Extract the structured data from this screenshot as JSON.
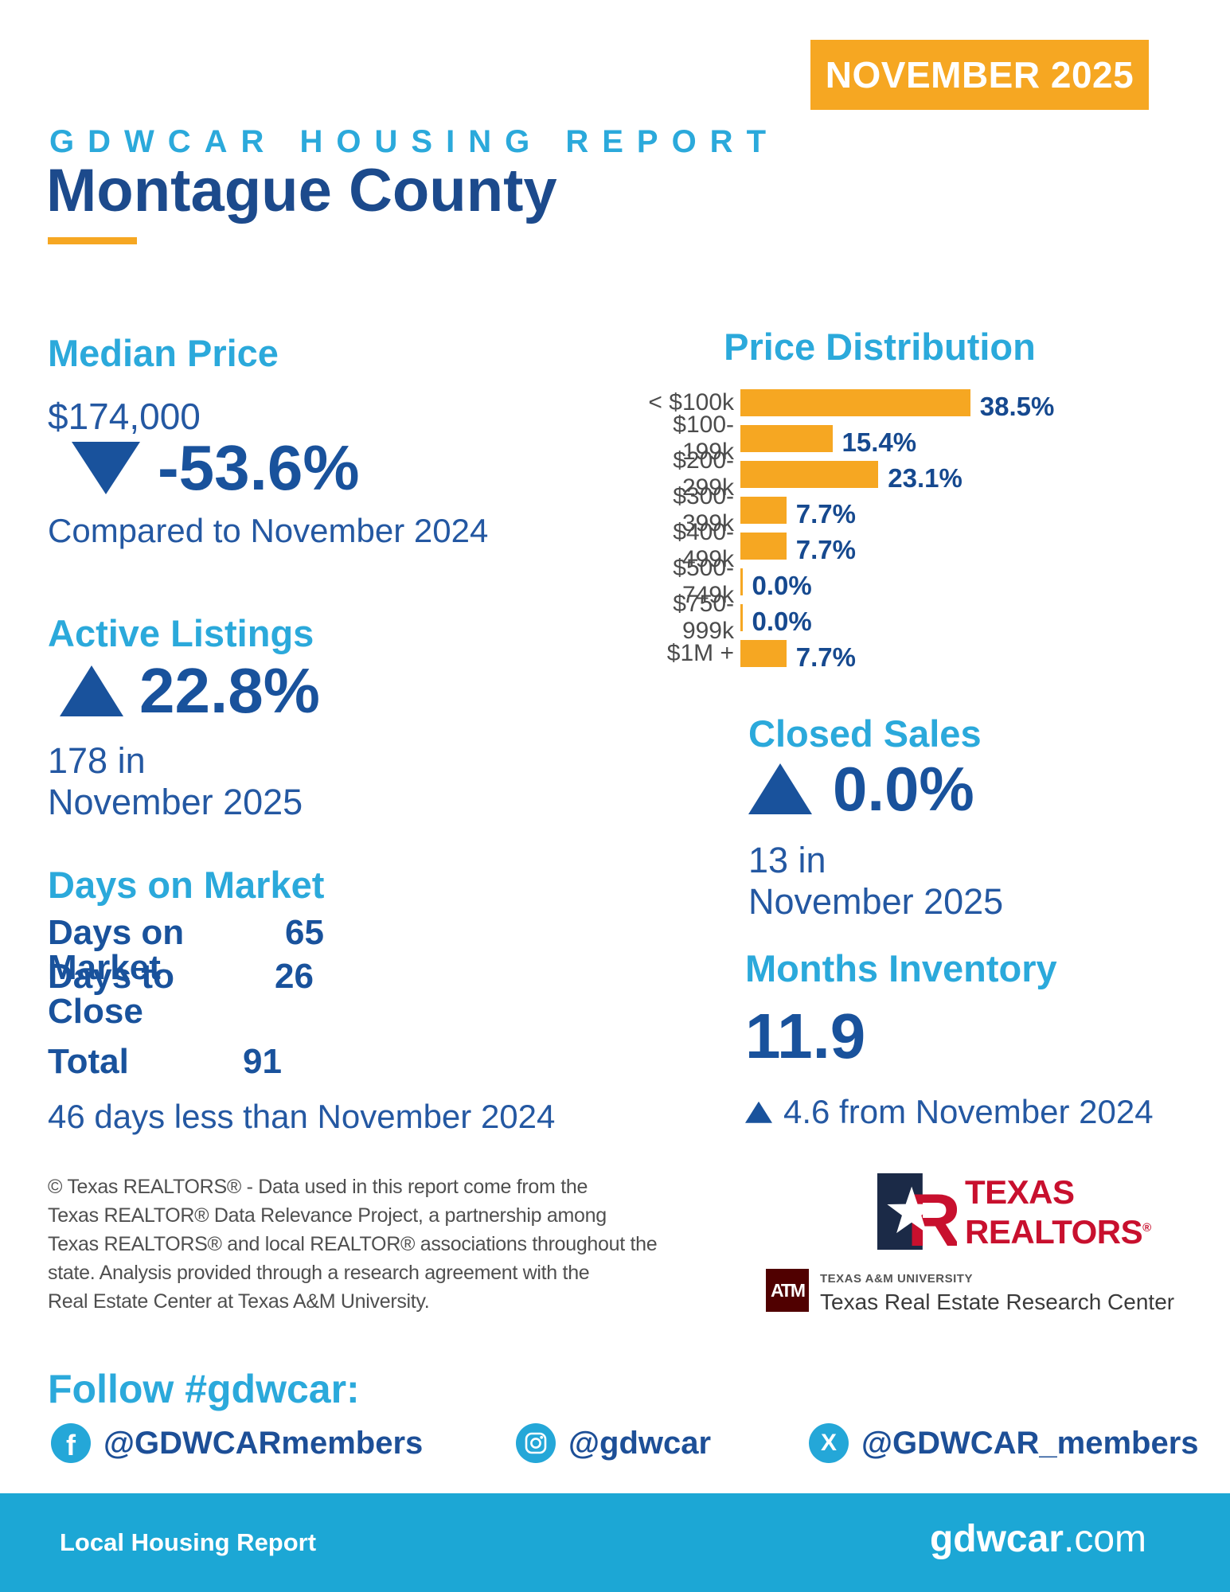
{
  "badge": {
    "label": "NOVEMBER 2025"
  },
  "header": {
    "kicker": "GDWCAR HOUSING REPORT",
    "title": "Montague County"
  },
  "median_price": {
    "heading": "Median Price",
    "value": "$174,000",
    "direction": "down",
    "change": "-53.6%",
    "compare": "Compared to November 2024"
  },
  "active_listings": {
    "heading": "Active Listings",
    "direction": "up",
    "change": "22.8%",
    "count_line1": "178 in",
    "count_line2": "November 2025"
  },
  "days_on_market": {
    "heading": "Days on Market",
    "rows": [
      {
        "label": "Days on Market",
        "value": "65"
      },
      {
        "label": "Days to Close",
        "value": "26"
      }
    ],
    "total": {
      "label": "Total",
      "value": "91"
    },
    "compare": "46 days less than November 2024"
  },
  "closed_sales": {
    "heading": "Closed Sales",
    "direction": "up",
    "change": "0.0%",
    "count_line1": "13 in",
    "count_line2": "November 2025"
  },
  "months_inventory": {
    "heading": "Months Inventory",
    "value": "11.9",
    "direction": "up",
    "compare": "4.6 from November 2024"
  },
  "chart_data": {
    "type": "bar",
    "orientation": "horizontal",
    "title": "Price Distribution",
    "categories": [
      "< $100k",
      "$100-199k",
      "$200-299k",
      "$300-399k",
      "$400-499k",
      "$500-749k",
      "$750-999k",
      "$1M +"
    ],
    "values": [
      38.5,
      15.4,
      23.1,
      7.7,
      7.7,
      0.0,
      0.0,
      7.7
    ],
    "value_labels": [
      "38.5%",
      "15.4%",
      "23.1%",
      "7.7%",
      "7.7%",
      "0.0%",
      "0.0%",
      "7.7%"
    ],
    "xlim": [
      0,
      40
    ],
    "grid": false,
    "legend": "none",
    "bar_color": "#F6A722",
    "value_label_color": "#16498F",
    "category_label_color": "#4C4C4C"
  },
  "disclaimer": {
    "lines": [
      "© Texas REALTORS® - Data used in this report come from the",
      "Texas REALTOR® Data Relevance Project, a partnership among",
      "Texas REALTORS® and local REALTOR® associations throughout the",
      "state. Analysis provided through a research agreement with the",
      "Real Estate Center at Texas A&M University."
    ]
  },
  "logos": {
    "texas_realtors": {
      "word1": "TEXAS",
      "word2": "REALTORS",
      "registered": "®"
    },
    "tamu": {
      "monogram": "ATM",
      "university": "TEXAS A&M UNIVERSITY",
      "center": "Texas Real Estate Research Center"
    }
  },
  "follow": {
    "heading": "Follow #gdwcar:",
    "socials": [
      {
        "network": "facebook",
        "handle": "@GDWCARmembers"
      },
      {
        "network": "instagram",
        "handle": "@gdwcar"
      },
      {
        "network": "x",
        "handle": "@GDWCAR_members"
      }
    ]
  },
  "footer": {
    "left": "Local Housing Report",
    "site_name": "gdwcar",
    "site_tld": ".com"
  },
  "colors": {
    "orange": "#F6A722",
    "cyan_heading": "#2BA9DB",
    "cyan_footer": "#1CA7D5",
    "navy_title": "#1C4A8C",
    "navy_stat": "#19529C",
    "navy_text": "#2458A2",
    "tr_red": "#C8102E",
    "tr_navy": "#1B2A47",
    "tamu_maroon": "#500000",
    "label_gray": "#4C4C4C",
    "body_gray": "#4F4F4F"
  }
}
